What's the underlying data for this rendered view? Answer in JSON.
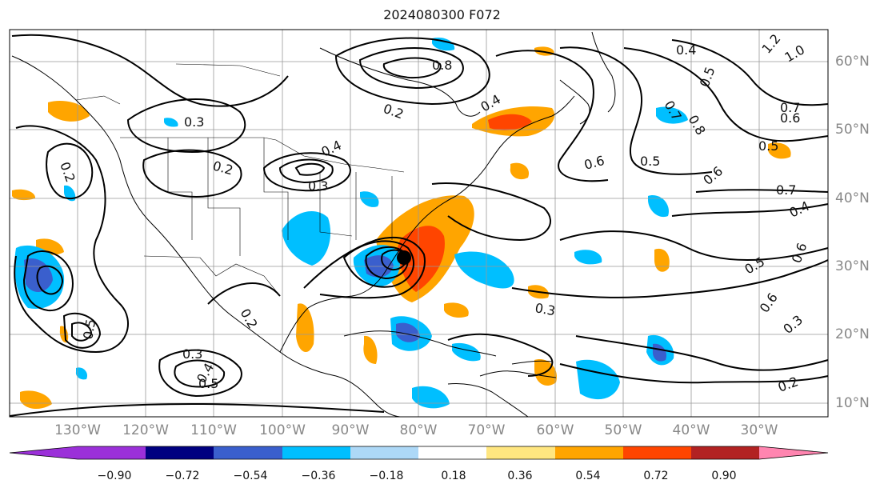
{
  "title": "2024080300 F072",
  "longitude_labels": [
    "130°W",
    "120°W",
    "110°W",
    "100°W",
    "90°W",
    "80°W",
    "70°W",
    "60°W",
    "50°W",
    "40°W",
    "30°W"
  ],
  "latitude_labels": [
    "60°N",
    "50°N",
    "40°N",
    "30°N",
    "20°N",
    "10°N"
  ],
  "colorbar": {
    "tick_labels": [
      "−0.90",
      "−0.72",
      "−0.54",
      "−0.36",
      "−0.18",
      "0.18",
      "0.36",
      "0.54",
      "0.72",
      "0.90"
    ],
    "colors": [
      "#9b30d9",
      "#000080",
      "#3a5fcd",
      "#00bfff",
      "#add8f7",
      "#ffffff",
      "#ffe680",
      "#ffa500",
      "#ff4500",
      "#b22222",
      "#ff85b0"
    ]
  },
  "contour_labels": [
    "0.3",
    "0.2",
    "0.8",
    "0.4",
    "0.2",
    "0.4",
    "0.3",
    "0.2",
    "0.6",
    "0.5",
    "0.7",
    "0.6",
    "0.5",
    "0.7",
    "0.4",
    "0.6",
    "0.5",
    "0.6",
    "0.3",
    "0.3",
    "0.5",
    "0.4",
    "0.2",
    "0.5",
    "1.0",
    "1.2",
    "0.4",
    "0.5",
    "0.7",
    "0.8",
    "0.3",
    "0.6",
    "0.2"
  ],
  "colors": {
    "positive": "#ffa500",
    "strong_positive": "#ff4500",
    "negative": "#00bfff",
    "strong_negative": "#3a5fcd",
    "contour": "#000000",
    "grid": "#999999"
  }
}
